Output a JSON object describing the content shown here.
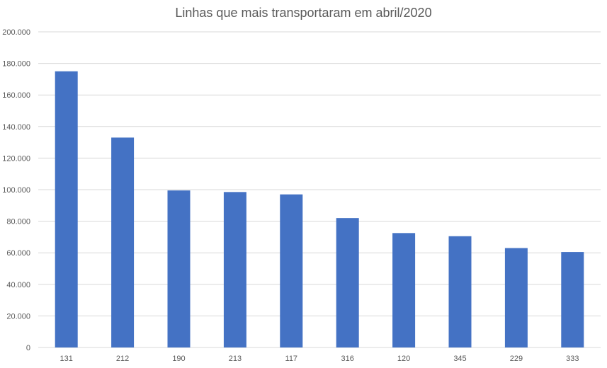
{
  "chart_data": {
    "type": "bar",
    "title": "Linhas que mais transportaram em abril/2020",
    "xlabel": "",
    "ylabel": "",
    "categories": [
      "131",
      "212",
      "190",
      "213",
      "117",
      "316",
      "120",
      "345",
      "229",
      "333"
    ],
    "values": [
      175000,
      133000,
      99500,
      98500,
      97000,
      82000,
      72500,
      70500,
      63000,
      60500
    ],
    "ylim": [
      0,
      200000
    ],
    "yticks": [
      0,
      20000,
      40000,
      60000,
      80000,
      100000,
      120000,
      140000,
      160000,
      180000,
      200000
    ],
    "ytick_labels": [
      "0",
      "20.000",
      "40.000",
      "60.000",
      "80.000",
      "100.000",
      "120.000",
      "140.000",
      "160.000",
      "180.000",
      "200.000"
    ],
    "grid": true,
    "legend": "none",
    "colors": {
      "bar": "#4472C4",
      "grid": "#D9D9D9",
      "text": "#595959"
    }
  }
}
